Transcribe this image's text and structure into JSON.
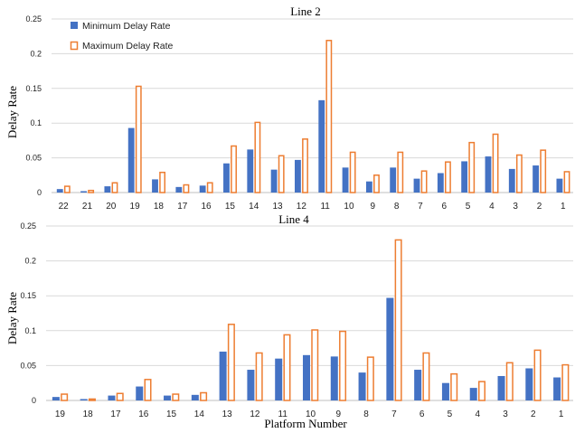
{
  "chart_data": [
    {
      "type": "bar",
      "title": "Line 2",
      "ylabel": "Delay Rate",
      "xlabel": "",
      "ylim": [
        0,
        0.25
      ],
      "yticks": [
        "0",
        "0.05",
        "0.1",
        "0.15",
        "0.2",
        "0.25"
      ],
      "grid": true,
      "legend": "top-left",
      "categories": [
        "22",
        "21",
        "20",
        "19",
        "18",
        "17",
        "16",
        "15",
        "14",
        "13",
        "12",
        "11",
        "10",
        "9",
        "8",
        "7",
        "6",
        "5",
        "4",
        "3",
        "2",
        "1"
      ],
      "series": [
        {
          "name": "Minimum Delay Rate",
          "style": "filled",
          "color": "#4472c4",
          "values": [
            0.005,
            0.002,
            0.009,
            0.093,
            0.019,
            0.008,
            0.01,
            0.042,
            0.062,
            0.033,
            0.047,
            0.133,
            0.036,
            0.016,
            0.036,
            0.02,
            0.028,
            0.045,
            0.052,
            0.034,
            0.039,
            0.02
          ]
        },
        {
          "name": "Maximum Delay Rate",
          "style": "outline",
          "color": "#ed7d31",
          "values": [
            0.01,
            0.004,
            0.015,
            0.154,
            0.03,
            0.012,
            0.015,
            0.068,
            0.102,
            0.054,
            0.078,
            0.22,
            0.059,
            0.026,
            0.059,
            0.032,
            0.045,
            0.073,
            0.085,
            0.055,
            0.062,
            0.031
          ]
        }
      ]
    },
    {
      "type": "bar",
      "title": "Line 4",
      "ylabel": "Delay Rate",
      "xlabel": "Platform Number",
      "ylim": [
        0,
        0.25
      ],
      "yticks": [
        "0",
        "0.05",
        "0.1",
        "0.15",
        "0.2",
        "0.25"
      ],
      "grid": true,
      "legend": "none",
      "categories": [
        "19",
        "18",
        "17",
        "16",
        "15",
        "14",
        "13",
        "12",
        "11",
        "10",
        "9",
        "8",
        "7",
        "6",
        "5",
        "4",
        "3",
        "2",
        "1"
      ],
      "series": [
        {
          "name": "Minimum Delay Rate",
          "style": "filled",
          "color": "#4472c4",
          "values": [
            0.005,
            0.002,
            0.007,
            0.02,
            0.007,
            0.008,
            0.07,
            0.044,
            0.06,
            0.065,
            0.063,
            0.04,
            0.147,
            0.044,
            0.025,
            0.018,
            0.035,
            0.046,
            0.033
          ]
        },
        {
          "name": "Maximum Delay Rate",
          "style": "outline",
          "color": "#ed7d31",
          "values": [
            0.01,
            0.003,
            0.011,
            0.031,
            0.01,
            0.012,
            0.11,
            0.069,
            0.095,
            0.102,
            0.1,
            0.063,
            0.231,
            0.069,
            0.039,
            0.028,
            0.055,
            0.073,
            0.052
          ]
        }
      ]
    }
  ]
}
